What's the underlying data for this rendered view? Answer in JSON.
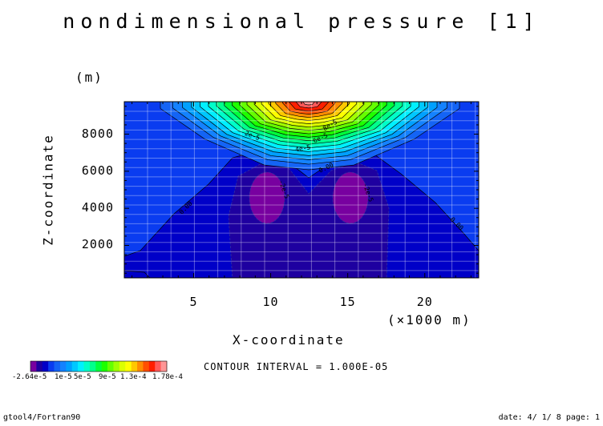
{
  "chart_data": {
    "type": "contour",
    "title": "nondimensional pressure [1]",
    "xlabel": "X-coordinate",
    "xunit": "(×1000 m)",
    "ylabel": "Z-coordinate",
    "yunit": "(m)",
    "xlim": [
      0.5,
      23.5
    ],
    "ylim": [
      250,
      9750
    ],
    "xticks": [
      5,
      10,
      15,
      20
    ],
    "xtick_labels": [
      "5",
      "10",
      "15",
      "20"
    ],
    "yticks": [
      2000,
      4000,
      6000,
      8000
    ],
    "ytick_labels": [
      "2000",
      "4000",
      "6000",
      "8000"
    ],
    "grid": true,
    "contour_interval": 1e-05,
    "contour_interval_text": "CONTOUR INTERVAL = 1.000E-05",
    "value_range": [
      -2.64e-05,
      0.000178
    ],
    "max_location": {
      "x": 12.5,
      "z": 9750
    },
    "min_locations": [
      {
        "x": 10,
        "z": 4600
      },
      {
        "x": 15,
        "z": 4600
      }
    ],
    "contour_labels": [
      "2e-5",
      "4e-5",
      "6e-5",
      "8e-5",
      "0.00",
      "0.00",
      "0.00",
      "-2e-5",
      "-2e-5"
    ],
    "colorbar": {
      "colors": [
        "#7800a0",
        "#1e00a0",
        "#0000c8",
        "#0a3cf0",
        "#1464f5",
        "#1482ff",
        "#00a0ff",
        "#00c8ff",
        "#00f0ff",
        "#00ffc8",
        "#00ff8c",
        "#00ff3c",
        "#1eff00",
        "#64ff00",
        "#a0ff00",
        "#dcff00",
        "#ffff00",
        "#ffc800",
        "#ff8c00",
        "#ff5000",
        "#ff1e00",
        "#ff5a5a",
        "#ff9696"
      ],
      "labels": [
        "-2.64e-5",
        "1e-5",
        "5e-5",
        "9e-5",
        "1.3e-4",
        "1.78e-4"
      ]
    }
  },
  "footer": {
    "left": "gtool4/Fortran90",
    "right": "date: 4/ 1/ 8 page: 1"
  }
}
